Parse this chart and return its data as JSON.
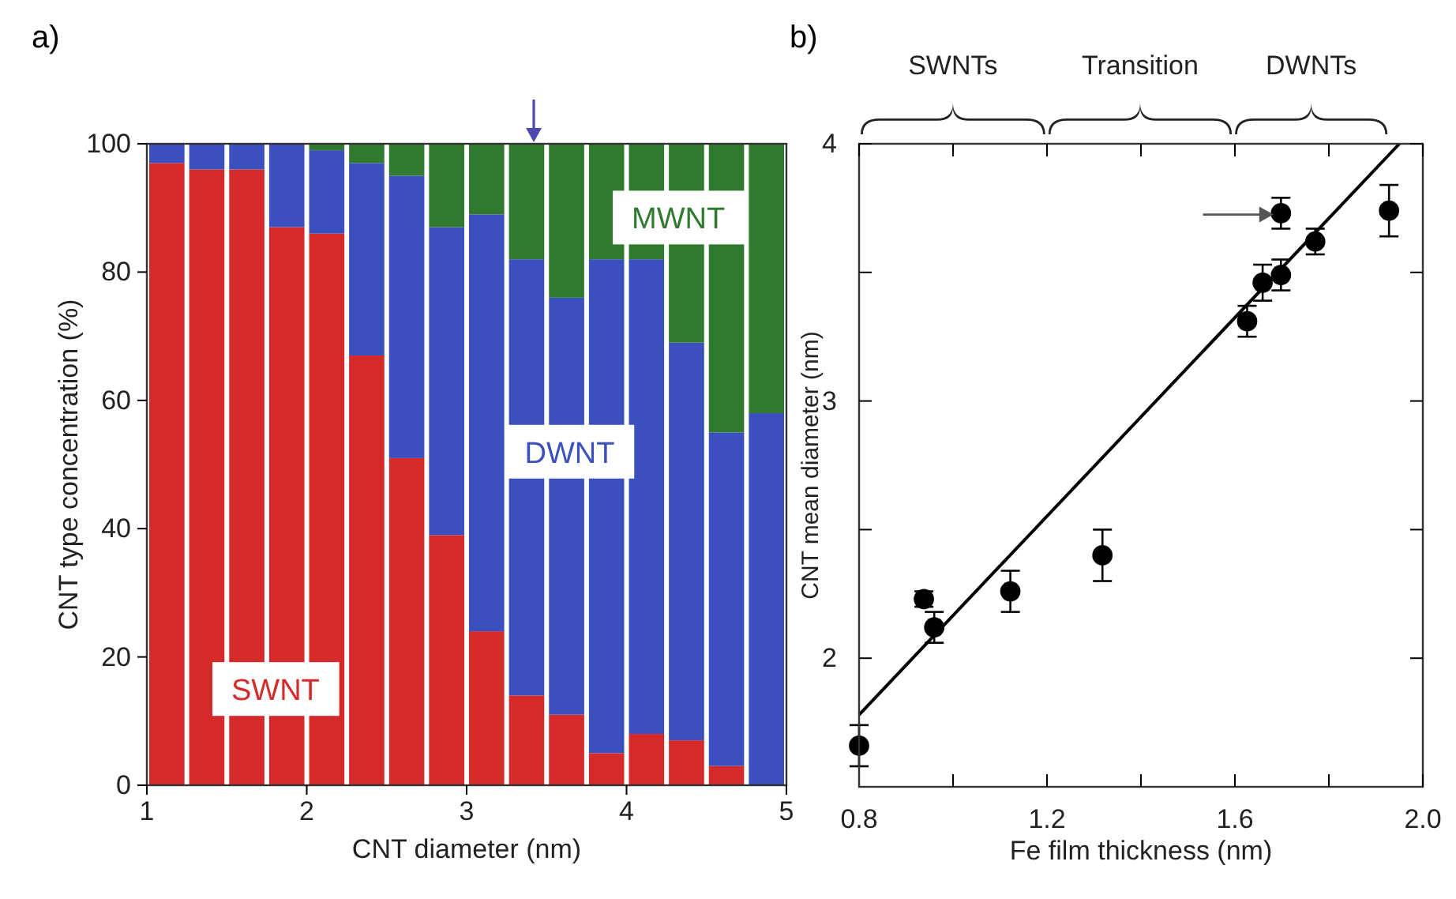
{
  "chart_data": [
    {
      "type": "bar",
      "title": "a)",
      "stacked": true,
      "xlabel": "CNT diameter (nm)",
      "ylabel": "CNT type concentration (%)",
      "x": [
        1.125,
        1.375,
        1.625,
        1.875,
        2.125,
        2.375,
        2.625,
        2.875,
        3.125,
        3.375,
        3.625,
        3.875,
        4.125,
        4.375,
        4.625,
        4.875
      ],
      "xlim": [
        1,
        5
      ],
      "xticks": [
        1,
        2,
        3,
        4,
        5
      ],
      "ylim": [
        0,
        100
      ],
      "yticks": [
        0,
        20,
        40,
        60,
        80,
        100
      ],
      "grid": false,
      "legend": false,
      "series": [
        {
          "name": "SWNT",
          "color": "#d42a2a",
          "values": [
            97,
            96,
            96,
            87,
            86,
            67,
            51,
            39,
            24,
            14,
            11,
            5,
            8,
            7,
            3,
            0
          ]
        },
        {
          "name": "DWNT",
          "color": "#3b4fbf",
          "values": [
            3,
            4,
            4,
            13,
            13,
            30,
            44,
            48,
            65,
            68,
            65,
            77,
            74,
            62,
            52,
            58
          ]
        },
        {
          "name": "MWNT",
          "color": "#2f7a2f",
          "values": [
            0,
            0,
            0,
            0,
            1,
            3,
            5,
            13,
            11,
            18,
            24,
            18,
            18,
            31,
            45,
            42
          ]
        }
      ]
    },
    {
      "type": "scatter",
      "title": "b)",
      "xlabel": "Fe film thickness (nm)",
      "ylabel": "CNT mean diameter (nm)",
      "x": [
        0.8,
        0.938,
        0.96,
        1.122,
        1.318,
        1.626,
        1.659,
        1.698,
        1.698,
        1.771,
        1.928
      ],
      "xlim": [
        0.8,
        2.0
      ],
      "xticks": [
        0.8,
        {
          "value": 1.0,
          "label": null
        },
        1.2,
        {
          "value": 1.4,
          "label": null
        },
        1.6,
        {
          "value": 1.8,
          "label": null
        },
        {
          "value": 2.0,
          "label": "2.0"
        }
      ],
      "ylim": [
        1.5,
        4
      ],
      "yticks": [
        {
          "value": 2.5,
          "label": null
        },
        2,
        3,
        {
          "value": 3.5,
          "label": null
        },
        4
      ],
      "grid": false,
      "legend": false,
      "series": [
        {
          "color": "#000000",
          "marker": "circle",
          "values": [
            1.66,
            2.23,
            2.12,
            2.26,
            2.4,
            3.31,
            3.46,
            3.49,
            3.73,
            3.62,
            3.74
          ],
          "errors": [
            0.08,
            0.03,
            0.06,
            0.08,
            0.1,
            0.06,
            0.07,
            0.06,
            0.06,
            0.05,
            0.1
          ]
        },
        {
          "type": "line",
          "color": "#000000",
          "x": [
            0.8,
            1.95
          ],
          "values": [
            1.78,
            4.0
          ]
        }
      ],
      "annotations": [
        "SWNTs",
        "Transition",
        "DWNTs"
      ]
    }
  ]
}
